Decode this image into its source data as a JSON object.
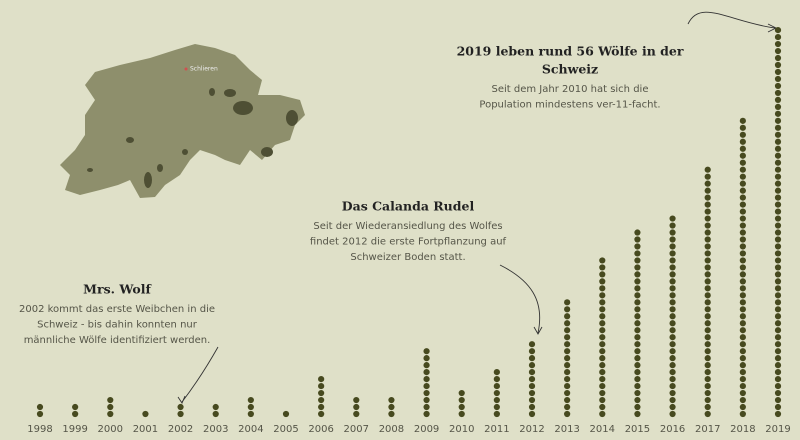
{
  "chart_data": {
    "type": "dot-column",
    "color": "#474a1f",
    "categories": [
      "1998",
      "1999",
      "2000",
      "2001",
      "2002",
      "2003",
      "2004",
      "2005",
      "2006",
      "2007",
      "2008",
      "2009",
      "2010",
      "2011",
      "2012",
      "2013",
      "2014",
      "2015",
      "2016",
      "2017",
      "2018",
      "2019"
    ],
    "values": [
      2,
      2,
      3,
      1,
      2,
      2,
      3,
      1,
      6,
      3,
      3,
      10,
      4,
      7,
      11,
      17,
      23,
      27,
      29,
      36,
      43,
      56
    ],
    "map_label": "Schlieren",
    "annotations": [
      {
        "title_lines": [
          "Mrs. Wolf"
        ],
        "lines": [
          "2002 kommt das erste Weibchen in die",
          "Schweiz - bis dahin konnten nur",
          "männliche Wölfe identifiziert werden."
        ]
      },
      {
        "title_lines": [
          "Das Calanda Rudel"
        ],
        "lines": [
          "Seit der Wiederansiedlung des Wolfes",
          "findet 2012 die erste Fortpflanzung auf",
          "Schweizer Boden statt."
        ]
      },
      {
        "title_lines": [
          "2019 leben rund 56 Wölfe in der",
          "Schweiz"
        ],
        "lines": [
          "Seit dem Jahr 2010 hat sich die",
          "Population mindestens ver-11-facht."
        ]
      }
    ]
  }
}
